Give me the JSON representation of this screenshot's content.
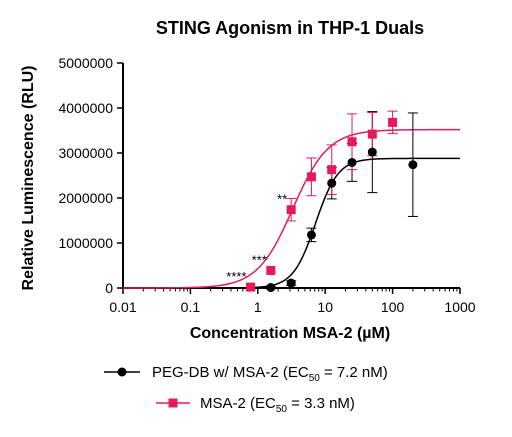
{
  "chart_data": {
    "type": "scatter",
    "title": "STING Agonism in THP-1 Duals",
    "xlabel": "Concentration MSA-2 (µM)",
    "ylabel": "Relative Luminescence (RLU)",
    "xscale": "log",
    "xlim": [
      0.01,
      1000
    ],
    "ylim": [
      0,
      5000000
    ],
    "x_ticks": [
      0.01,
      0.1,
      1,
      10,
      100,
      1000
    ],
    "x_tick_labels": [
      "0.01",
      "0.1",
      "1",
      "10",
      "100",
      "1000"
    ],
    "y_ticks": [
      0,
      1000000,
      2000000,
      3000000,
      4000000,
      5000000
    ],
    "y_tick_labels": [
      "0",
      "1000000",
      "2000000",
      "3000000",
      "4000000",
      "5000000"
    ],
    "grid": false,
    "legend_position": "bottom",
    "series": [
      {
        "name": "PEG-DB w/ MSA-2 (EC50 = 7.2 nM)",
        "legend_main": "PEG-DB w/ MSA-2 (EC",
        "legend_sub": "50",
        "legend_tail": " = 7.2 nM)",
        "color": "#000000",
        "marker": "circle",
        "points": [
          {
            "x": 1.56,
            "y": 10000,
            "err": 30000
          },
          {
            "x": 3.13,
            "y": 110000,
            "err": 50000
          },
          {
            "x": 6.25,
            "y": 1180000,
            "err": 150000
          },
          {
            "x": 12.5,
            "y": 2330000,
            "err": 350000
          },
          {
            "x": 25,
            "y": 2790000,
            "err": 420000
          },
          {
            "x": 50,
            "y": 3020000,
            "err": 900000
          },
          {
            "x": 200,
            "y": 2740000,
            "err": 1150000
          }
        ],
        "fit": {
          "bottom": 0,
          "top": 2880000,
          "ec50": 7.2,
          "hill": 2.6
        }
      },
      {
        "name": "MSA-2 (EC50 = 3.3 nM)",
        "legend_main": "MSA-2 (EC",
        "legend_sub": "50",
        "legend_tail": " = 3.3 nM)",
        "color": "#e8195a",
        "marker": "square",
        "points": [
          {
            "x": 0.78,
            "y": 20000,
            "err": 0
          },
          {
            "x": 1.56,
            "y": 390000,
            "err": 0
          },
          {
            "x": 3.13,
            "y": 1740000,
            "err": 250000
          },
          {
            "x": 6.25,
            "y": 2470000,
            "err": 420000
          },
          {
            "x": 12.5,
            "y": 2630000,
            "err": 550000
          },
          {
            "x": 25,
            "y": 3250000,
            "err": 620000
          },
          {
            "x": 50,
            "y": 3420000,
            "err": 480000
          },
          {
            "x": 100,
            "y": 3680000,
            "err": 250000
          }
        ],
        "fit": {
          "bottom": 0,
          "top": 3520000,
          "ec50": 3.3,
          "hill": 1.65
        }
      }
    ],
    "annotations": [
      {
        "text": "****",
        "x": 0.78,
        "y": 20000
      },
      {
        "text": "***",
        "x": 1.56,
        "y": 390000
      },
      {
        "text": "**",
        "x": 3.13,
        "y": 1740000
      }
    ]
  }
}
